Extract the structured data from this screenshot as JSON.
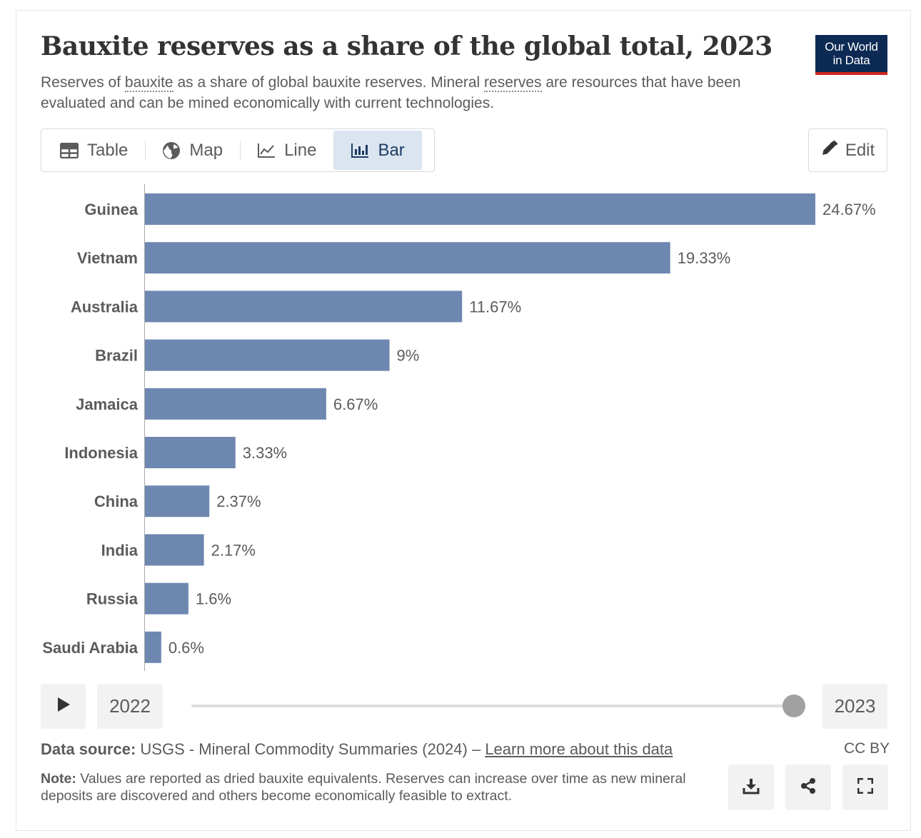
{
  "header": {
    "title": "Bauxite reserves as a share of the global total, 2023",
    "subtitle_part1": "Reserves of ",
    "subtitle_link1": "bauxite",
    "subtitle_part2": " as a share of global bauxite reserves. Mineral ",
    "subtitle_link2": "reserves",
    "subtitle_part3": " are resources that have been evaluated and can be mined economically with current technologies.",
    "logo_line1": "Our World",
    "logo_line2": "in Data"
  },
  "tabs": [
    {
      "label": "Table",
      "icon": "table-icon"
    },
    {
      "label": "Map",
      "icon": "globe-icon"
    },
    {
      "label": "Line",
      "icon": "line-chart-icon"
    },
    {
      "label": "Bar",
      "icon": "bar-chart-icon",
      "active": true
    }
  ],
  "edit": {
    "label": "Edit",
    "icon": "pencil-icon"
  },
  "chart_data": {
    "type": "bar",
    "orientation": "horizontal",
    "categories": [
      "Guinea",
      "Vietnam",
      "Australia",
      "Brazil",
      "Jamaica",
      "Indonesia",
      "China",
      "India",
      "Russia",
      "Saudi Arabia"
    ],
    "values": [
      24.67,
      19.33,
      11.67,
      9,
      6.67,
      3.33,
      2.37,
      2.17,
      1.6,
      0.6
    ],
    "value_labels": [
      "24.67%",
      "19.33%",
      "11.67%",
      "9%",
      "6.67%",
      "3.33%",
      "2.37%",
      "2.17%",
      "1.6%",
      "0.6%"
    ],
    "unit": "%",
    "bar_color": "#6d87b0",
    "xlim": [
      0,
      24.67
    ]
  },
  "timeline": {
    "start_year": "2022",
    "end_year": "2023",
    "position": 1.0
  },
  "footer": {
    "source_label": "Data source:",
    "source_text": " USGS - Mineral Commodity Summaries (2024) – ",
    "source_link": "Learn more about this data",
    "license": "CC BY",
    "note_label": "Note:",
    "note_text": " Values are reported as dried bauxite equivalents. Reserves can increase over time as new mineral deposits are discovered and others become economically feasible to extract."
  }
}
